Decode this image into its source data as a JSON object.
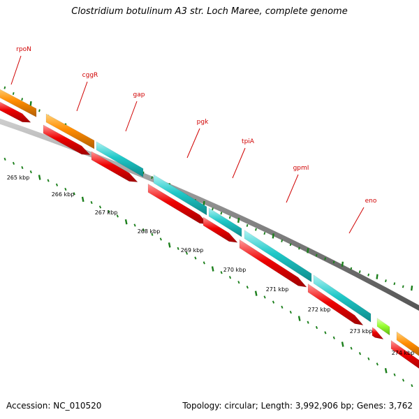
{
  "title": "Clostridium botulinum A3 str. Loch Maree, complete genome",
  "footer": {
    "accession": "Accession: NC_010520",
    "summary": "Topology: circular; Length: 3,992,906 bp; Genes: 3,762"
  },
  "colors": {
    "label": "#d00000",
    "backbone": "#777777",
    "tick": "#1b7f1b",
    "forward_orange": "#ff8c00",
    "forward_cyan": "#20c8c8",
    "forward_lime": "#99ff33",
    "reverse_red": "#ee0000"
  },
  "gene_labels": [
    "rpoN",
    "cggR",
    "gap",
    "pgk",
    "tpiA",
    "gpmI",
    "eno"
  ],
  "kbp_labels": [
    "265 kbp",
    "266 kbp",
    "267 kbp",
    "268 kbp",
    "269 kbp",
    "270 kbp",
    "271 kbp",
    "272 kbp",
    "273 kbp",
    "274 kbp"
  ]
}
